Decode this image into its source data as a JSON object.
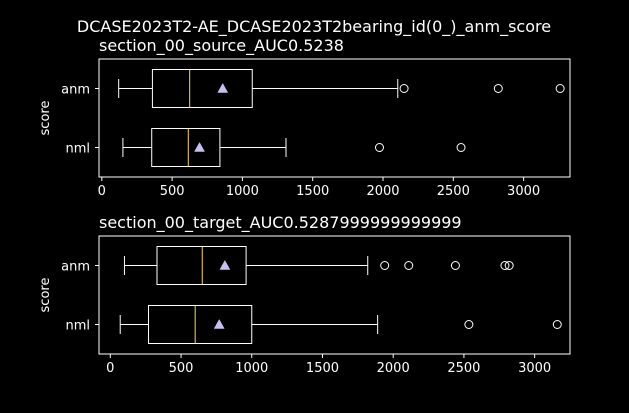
{
  "suptitle": "DCASE2023T2-AE_DCASE2023T2bearing_id(0_)_anm_score",
  "colors": {
    "background": "#000000",
    "foreground": "#ffffff",
    "median": "#ffd75a",
    "mean_marker": "#c8c0ee"
  },
  "chart_data": [
    {
      "type": "box",
      "title": "section_00_source_AUC0.5238",
      "ylabel": "score",
      "xlim": [
        -20,
        3330
      ],
      "xticks": [
        0,
        500,
        1000,
        1500,
        2000,
        2500,
        3000
      ],
      "categories": [
        "anm",
        "nml"
      ],
      "boxes": [
        {
          "label": "anm",
          "whislo": 120,
          "q1": 360,
          "med": 625,
          "q3": 1070,
          "whishi": 2105,
          "mean": 860,
          "fliers": [
            2150,
            2820,
            3260
          ]
        },
        {
          "label": "nml",
          "whislo": 150,
          "q1": 355,
          "med": 615,
          "q3": 840,
          "whishi": 1310,
          "mean": 695,
          "fliers": [
            1975,
            2555
          ]
        }
      ]
    },
    {
      "type": "box",
      "title": "section_00_target_AUC0.5287999999999999",
      "ylabel": "score",
      "xlim": [
        -80,
        3250
      ],
      "xticks": [
        0,
        500,
        1000,
        1500,
        2000,
        2500,
        3000
      ],
      "categories": [
        "anm",
        "nml"
      ],
      "boxes": [
        {
          "label": "anm",
          "whislo": 100,
          "q1": 330,
          "med": 650,
          "q3": 960,
          "whishi": 1820,
          "mean": 810,
          "fliers": [
            1940,
            2110,
            2440,
            2790,
            2820
          ]
        },
        {
          "label": "nml",
          "whislo": 70,
          "q1": 270,
          "med": 600,
          "q3": 1000,
          "whishi": 1890,
          "mean": 770,
          "fliers": [
            2535,
            3160
          ]
        }
      ]
    }
  ]
}
